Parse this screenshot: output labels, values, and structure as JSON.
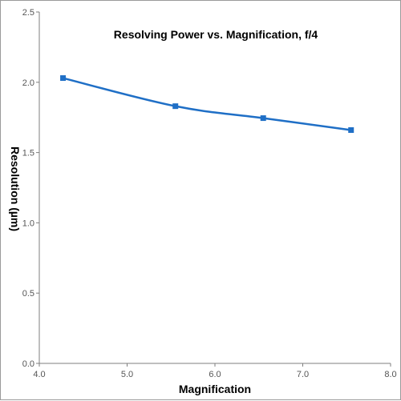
{
  "chart_data": {
    "type": "line",
    "title": "Resolving Power vs. Magnification, f/4",
    "xlabel": "Magnification",
    "ylabel": "Resolution (µm)",
    "xlim": [
      4.0,
      8.0
    ],
    "ylim": [
      0.0,
      2.5
    ],
    "x_ticks": [
      "4.0",
      "5.0",
      "6.0",
      "7.0",
      "8.0"
    ],
    "y_ticks": [
      "0.0",
      "0.5",
      "1.0",
      "1.5",
      "2.0",
      "2.5"
    ],
    "grid": false,
    "marker": "square",
    "series": [
      {
        "color": "#1f6fc6",
        "x": [
          4.27,
          5.55,
          6.55,
          7.55
        ],
        "y": [
          2.03,
          1.83,
          1.745,
          1.66
        ]
      }
    ]
  }
}
